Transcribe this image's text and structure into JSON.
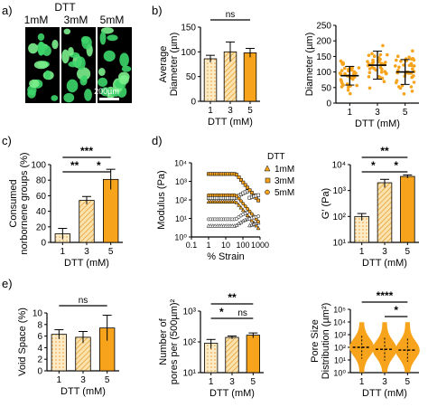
{
  "colors": {
    "orange": "#F7A41C",
    "orange_light": "#FBD48A",
    "hatch_light": "#FCE4B5",
    "micro_bg": "#000000",
    "cells": "#3DD56A"
  },
  "panels": {
    "a": "a)",
    "b": "b)",
    "c": "c)",
    "d": "d)",
    "e": "e)"
  },
  "micrograph": {
    "title": "DTT",
    "labels": [
      "1mM",
      "3mM",
      "5mM"
    ],
    "scalebar": "200µm"
  },
  "chart_data": [
    {
      "id": "avg_diameter",
      "type": "bar",
      "categories": [
        "1",
        "3",
        "5"
      ],
      "values": [
        86,
        100,
        98
      ],
      "errors": [
        7,
        20,
        9
      ],
      "xlabel": "DTT (mM)",
      "ylabel": [
        "Average",
        "Diameter (µm)"
      ],
      "ylim": [
        0,
        150
      ],
      "yticks": [
        "0",
        "50",
        "100",
        "150"
      ],
      "sig": [
        {
          "from": 0,
          "to": 2,
          "label": "ns"
        }
      ]
    },
    {
      "id": "diameter_dist",
      "type": "scatter",
      "categories": [
        "1",
        "3",
        "5"
      ],
      "means": [
        88,
        122,
        100
      ],
      "sd": [
        30,
        45,
        40
      ],
      "xlabel": "DTT (mM)",
      "ylabel": [
        "Diameter (µm)"
      ],
      "ylim": [
        0,
        250
      ],
      "yticks": [
        "0",
        "50",
        "100",
        "150",
        "200",
        "250"
      ]
    },
    {
      "id": "norbornene",
      "type": "bar",
      "categories": [
        "1",
        "3",
        "5"
      ],
      "values": [
        11,
        54,
        81
      ],
      "errors": [
        7,
        5,
        13
      ],
      "xlabel": "DTT (mM)",
      "ylabel": [
        "Consumed",
        "norbornene groups (%)"
      ],
      "ylim": [
        0,
        100
      ],
      "yticks": [
        "0",
        "20",
        "40",
        "60",
        "80",
        "100"
      ],
      "sig": [
        {
          "from": 0,
          "to": 1,
          "label": "**"
        },
        {
          "from": 1,
          "to": 2,
          "label": "*"
        },
        {
          "from": 0,
          "to": 2,
          "label": "***"
        }
      ]
    },
    {
      "id": "modulus_sweep",
      "type": "line",
      "xlabel": "% Strain",
      "ylabel": [
        "Modulus (Pa)"
      ],
      "xticks": [
        "0.1",
        "1",
        "10",
        "100",
        "1000"
      ],
      "yticks": [
        "10⁰",
        "10¹",
        "10²",
        "10³",
        "10⁴"
      ],
      "xlim_log": [
        -1,
        3
      ],
      "ylim_log": [
        0,
        4
      ],
      "legend_title": "DTT",
      "legend": [
        "1mM",
        "3mM",
        "5mM"
      ],
      "series": [
        {
          "name": "1mM",
          "plateau": 80,
          "color": "#F7A41C"
        },
        {
          "name": "3mM",
          "plateau": 2500,
          "color": "#F7A41C"
        },
        {
          "name": "5mM",
          "plateau": 180,
          "color": "#F7A41C"
        }
      ]
    },
    {
      "id": "storage_modulus",
      "type": "bar",
      "categories": [
        "1",
        "3",
        "5"
      ],
      "values": [
        100,
        2000,
        3500
      ],
      "errors": [
        30,
        700,
        500
      ],
      "xlabel": "DTT (mM)",
      "ylabel": [
        "G′ (Pa)"
      ],
      "ylim_log": [
        1,
        4
      ],
      "yticks": [
        "10¹",
        "10²",
        "10³",
        "10⁴"
      ],
      "sig": [
        {
          "from": 0,
          "to": 1,
          "label": "*"
        },
        {
          "from": 1,
          "to": 2,
          "label": "*"
        },
        {
          "from": 0,
          "to": 2,
          "label": "**"
        }
      ]
    },
    {
      "id": "void_space",
      "type": "bar",
      "categories": [
        "1",
        "3",
        "5"
      ],
      "values": [
        6.3,
        5.8,
        7.4
      ],
      "errors": [
        0.8,
        1.0,
        2.2
      ],
      "xlabel": "DTT (mM)",
      "ylabel": [
        "Void Space (%)"
      ],
      "ylim": [
        0,
        10
      ],
      "yticks": [
        "0",
        "2",
        "4",
        "6",
        "8",
        "10"
      ],
      "sig": [
        {
          "from": 0,
          "to": 2,
          "label": "ns"
        }
      ]
    },
    {
      "id": "pores",
      "type": "bar",
      "categories": [
        "1",
        "3",
        "5"
      ],
      "values": [
        90,
        140,
        165
      ],
      "errors": [
        30,
        15,
        30
      ],
      "xlabel": "DTT (mM)",
      "ylabel": [
        "Number of",
        "pores per (500µm)²"
      ],
      "ylim_log": [
        1,
        3
      ],
      "yticks": [
        "10¹",
        "10²",
        "10³"
      ],
      "sig": [
        {
          "from": 0,
          "to": 1,
          "label": "*"
        },
        {
          "from": 1,
          "to": 2,
          "label": "ns"
        },
        {
          "from": 0,
          "to": 2,
          "label": "**"
        }
      ]
    },
    {
      "id": "pore_size",
      "type": "violin",
      "categories": [
        "1",
        "3",
        "5"
      ],
      "medians": [
        100,
        70,
        60
      ],
      "xlabel": "DTT (mM)",
      "ylabel": [
        "Pore Size",
        "Distribution (µm²)"
      ],
      "ylim_log": [
        0,
        5
      ],
      "yticks": [
        "10⁰",
        "10¹",
        "10²",
        "10³",
        "10⁴",
        "10⁵"
      ],
      "sig": [
        {
          "from": 1,
          "to": 2,
          "label": "*"
        },
        {
          "from": 0,
          "to": 2,
          "label": "****"
        }
      ]
    }
  ]
}
